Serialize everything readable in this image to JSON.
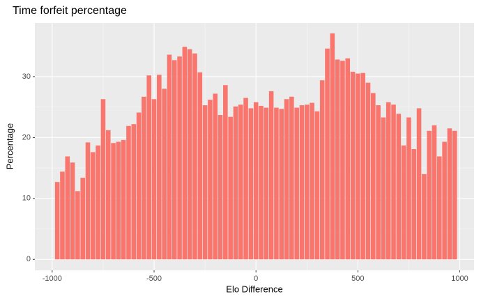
{
  "chart_data": {
    "type": "bar",
    "title": "Time forfeit percentage",
    "xlabel": "Elo Difference",
    "ylabel": "Percentage",
    "x": [
      -975,
      -950,
      -925,
      -900,
      -875,
      -850,
      -825,
      -800,
      -775,
      -750,
      -725,
      -700,
      -675,
      -650,
      -625,
      -600,
      -575,
      -550,
      -525,
      -500,
      -475,
      -450,
      -425,
      -400,
      -375,
      -350,
      -325,
      -300,
      -275,
      -250,
      -225,
      -200,
      -175,
      -150,
      -125,
      -100,
      -75,
      -50,
      -25,
      0,
      25,
      50,
      75,
      100,
      125,
      150,
      175,
      200,
      225,
      250,
      275,
      300,
      325,
      350,
      375,
      400,
      425,
      450,
      475,
      500,
      525,
      550,
      575,
      600,
      625,
      650,
      675,
      700,
      725,
      750,
      775,
      800,
      825,
      850,
      875,
      900,
      925,
      950,
      975
    ],
    "values": [
      12.7,
      14.4,
      16.9,
      15.9,
      11.2,
      13.4,
      19.2,
      17.6,
      18.7,
      26.3,
      21.2,
      19.1,
      19.3,
      19.6,
      21.9,
      22.2,
      24.1,
      26.7,
      30.2,
      26.3,
      30.3,
      28.0,
      33.6,
      32.7,
      33.3,
      34.9,
      34.5,
      33.8,
      30.7,
      25.3,
      26.2,
      27.2,
      23.7,
      28.6,
      23.4,
      25.1,
      25.4,
      26.5,
      24.8,
      25.8,
      25.2,
      24.9,
      27.6,
      24.9,
      24.7,
      26.3,
      26.7,
      24.9,
      25.3,
      25.4,
      25.7,
      24.3,
      29.4,
      34.6,
      37.1,
      32.8,
      32.6,
      33.0,
      30.8,
      30.5,
      30.6,
      29.0,
      27.3,
      25.3,
      23.3,
      25.8,
      25.4,
      23.9,
      18.7,
      23.3,
      18.1,
      24.8,
      14.0,
      21.1,
      22.0,
      16.9,
      19.3,
      21.5,
      21.1
    ],
    "color": "#F8766D",
    "xlim": [
      -1085,
      1070
    ],
    "xticks": [
      -1000,
      -500,
      0,
      500,
      1000
    ],
    "ylim": [
      -1.8,
      38.8
    ],
    "yticks": [
      0,
      10,
      20,
      30
    ],
    "grid": true
  }
}
